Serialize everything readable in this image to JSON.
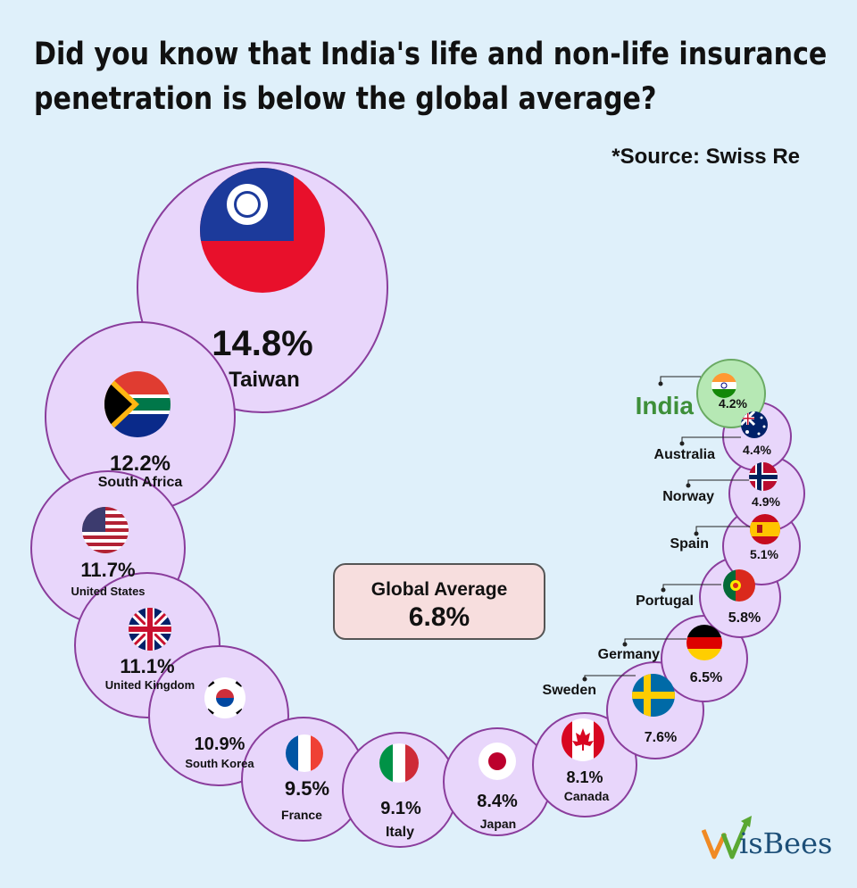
{
  "title_line1": "Did you know that India's life and non-life insurance",
  "title_line2": "penetration is below the global average?",
  "source": "*Source: Swiss Re",
  "global_average": {
    "label": "Global Average",
    "value": "6.8%"
  },
  "logo": {
    "text": "isBees",
    "colors": {
      "w_orange": "#f08a24",
      "w_green": "#5aa832",
      "text": "#1d4f78"
    }
  },
  "colors": {
    "bubble": "#e8d6fb",
    "bubble_border": "#8a3d9c",
    "india_bubble": "#b6e8b4",
    "india_text": "#3e8f39",
    "background": "#dff0fa"
  },
  "chart_data": {
    "type": "bubble",
    "unit": "%",
    "countries": [
      {
        "name": "Taiwan",
        "value": 14.8,
        "label": "14.8%",
        "flag": "taiwan-flag"
      },
      {
        "name": "South Africa",
        "value": 12.2,
        "label": "12.2%",
        "flag": "south-africa-flag"
      },
      {
        "name": "United States",
        "value": 11.7,
        "label": "11.7%",
        "flag": "united-states-flag"
      },
      {
        "name": "United Kingdom",
        "value": 11.1,
        "label": "11.1%",
        "flag": "united-kingdom-flag"
      },
      {
        "name": "South Korea",
        "value": 10.9,
        "label": "10.9%",
        "flag": "south-korea-flag"
      },
      {
        "name": "France",
        "value": 9.5,
        "label": "9.5%",
        "flag": "france-flag"
      },
      {
        "name": "Italy",
        "value": 9.1,
        "label": "9.1%",
        "flag": "italy-flag"
      },
      {
        "name": "Japan",
        "value": 8.4,
        "label": "8.4%",
        "flag": "japan-flag"
      },
      {
        "name": "Canada",
        "value": 8.1,
        "label": "8.1%",
        "flag": "canada-flag"
      },
      {
        "name": "Sweden",
        "value": 7.6,
        "label": "7.6%",
        "flag": "sweden-flag"
      },
      {
        "name": "Germany",
        "value": 6.5,
        "label": "6.5%",
        "flag": "germany-flag"
      },
      {
        "name": "Portugal",
        "value": 5.8,
        "label": "5.8%",
        "flag": "portugal-flag"
      },
      {
        "name": "Spain",
        "value": 5.1,
        "label": "5.1%",
        "flag": "spain-flag"
      },
      {
        "name": "Norway",
        "value": 4.9,
        "label": "4.9%",
        "flag": "norway-flag"
      },
      {
        "name": "Australia",
        "value": 4.4,
        "label": "4.4%",
        "flag": "australia-flag"
      },
      {
        "name": "India",
        "value": 4.2,
        "label": "4.2%",
        "flag": "india-flag",
        "highlight": true
      }
    ]
  }
}
